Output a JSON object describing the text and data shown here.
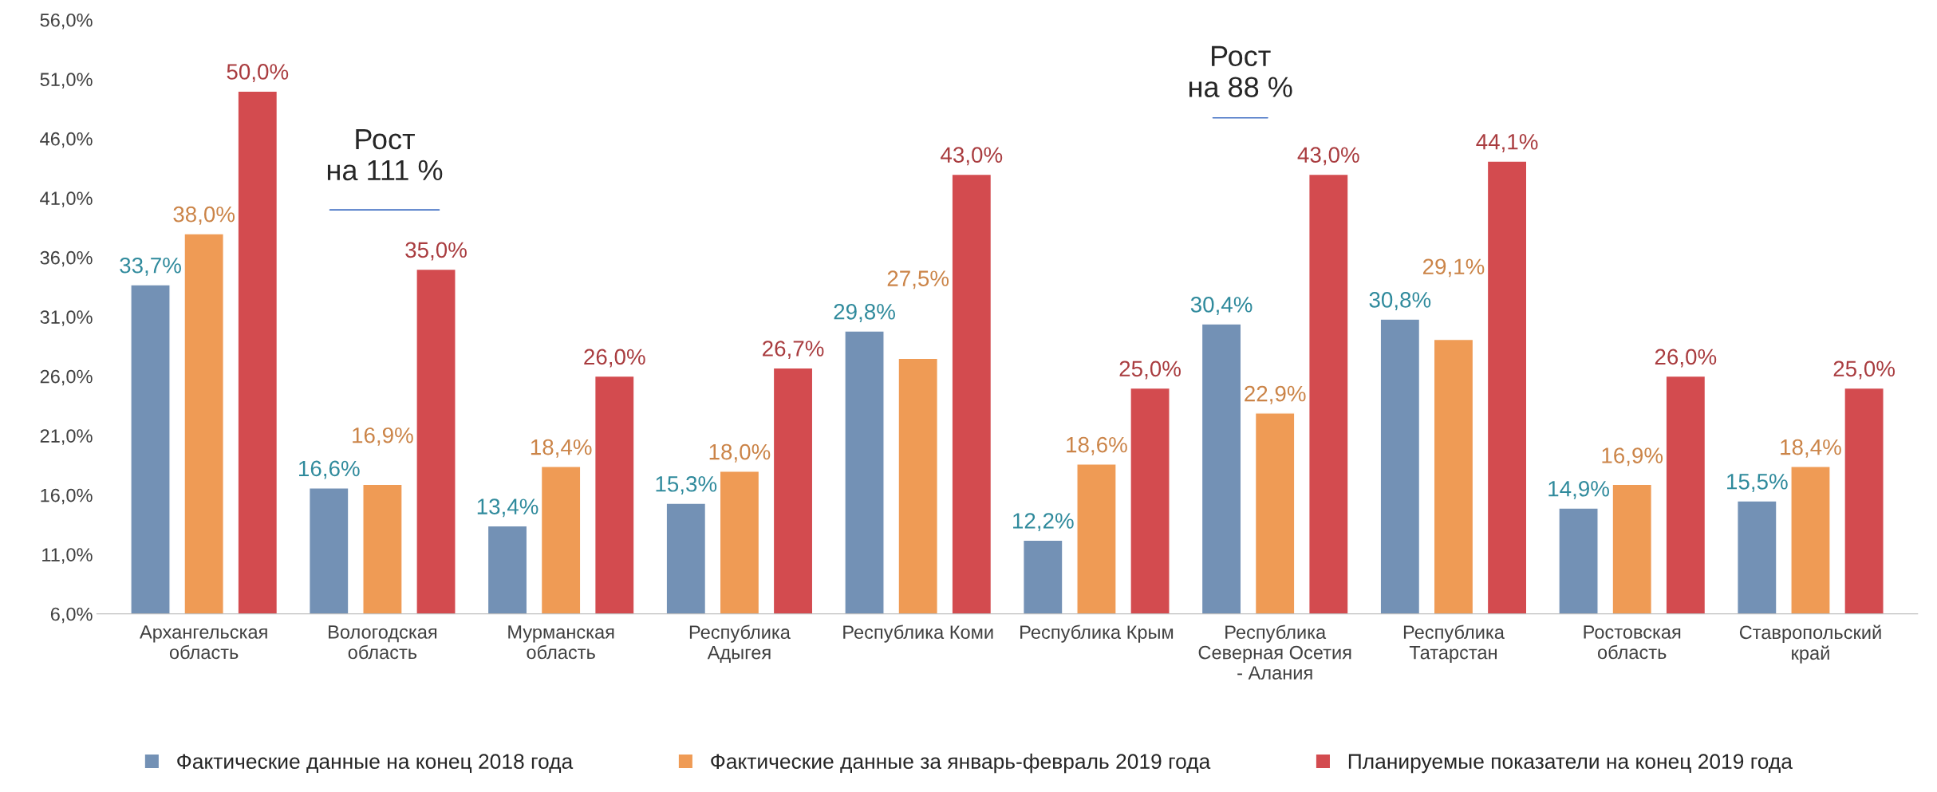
{
  "chart_data": {
    "type": "bar",
    "categories": [
      "Архангельская\nобласть",
      "Вологодская\nобласть",
      "Мурманская\nобласть",
      "Республика\nАдыгея",
      "Республика Коми",
      "Республика Крым",
      "Республика\nСеверная Осетия\n- Алания",
      "Республика\nТатарстан",
      "Ростовская\nобласть",
      "Ставропольский\nкрай"
    ],
    "series": [
      {
        "name": "Фактические данные на конец 2018 года",
        "color": "#7391b5",
        "values": [
          33.7,
          16.6,
          13.4,
          15.3,
          29.8,
          12.2,
          30.4,
          30.8,
          14.9,
          15.5
        ],
        "value_labels": [
          "33,7%",
          "16,6%",
          "13,4%",
          "15,3%",
          "29,8%",
          "12,2%",
          "30,4%",
          "30,8%",
          "14,9%",
          "15,5%"
        ]
      },
      {
        "name": "Фактические данные за январь-февраль 2019 года",
        "color": "#ef9b55",
        "values": [
          38.0,
          16.9,
          18.4,
          18.0,
          27.5,
          18.6,
          22.9,
          29.1,
          16.9,
          18.4
        ],
        "value_labels": [
          "38,0%",
          "16,9%",
          "18,4%",
          "18,0%",
          "27,5%",
          "18,6%",
          "22,9%",
          "29,1%",
          "16,9%",
          "18,4%"
        ]
      },
      {
        "name": "Планируемые показатели на конец 2019 года",
        "color": "#d34b4f",
        "values": [
          50.0,
          35.0,
          26.0,
          26.7,
          43.0,
          25.0,
          43.0,
          44.1,
          26.0,
          25.0
        ],
        "value_labels": [
          "50,0%",
          "35,0%",
          "26,0%",
          "26,7%",
          "43,0%",
          "25,0%",
          "43,0%",
          "44,1%",
          "26,0%",
          "25,0%"
        ]
      }
    ],
    "ylim": [
      6,
      56
    ],
    "yticks": [
      {
        "value": 6,
        "label": "6,0%"
      },
      {
        "value": 11,
        "label": "11,0%"
      },
      {
        "value": 16,
        "label": "16,0%"
      },
      {
        "value": 21,
        "label": "21,0%"
      },
      {
        "value": 26,
        "label": "26,0%"
      },
      {
        "value": 31,
        "label": "31,0%"
      },
      {
        "value": 36,
        "label": "36,0%"
      },
      {
        "value": 41,
        "label": "41,0%"
      },
      {
        "value": 46,
        "label": "46,0%"
      },
      {
        "value": 51,
        "label": "51,0%"
      },
      {
        "value": 56,
        "label": "56,0%"
      }
    ],
    "annotations": [
      "Рост\nна 111 %",
      "Рост\nна 88 %"
    ],
    "grid": false,
    "legend": "bottom"
  }
}
